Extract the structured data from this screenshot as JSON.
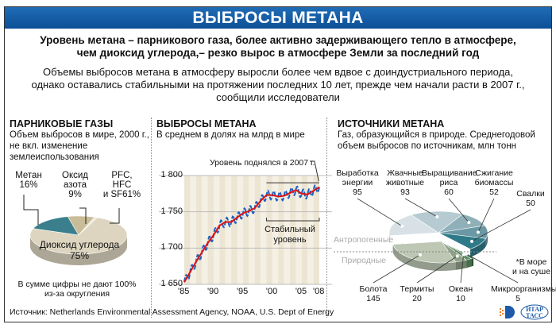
{
  "title": "ВЫБРОСЫ МЕТАНА",
  "lead_line1": "Уровень метана – парникового газа, более активно задерживающего тепло в атмосфере,",
  "lead_line2": "чем диоксид углерода,– резко вырос в атмосфере Земли за последний год",
  "intro_line1": "Объемы выбросов метана в атмосферу выросли более чем вдвое с доиндустриального периода,",
  "intro_line2": "однако оставались стабильными на протяжении последних 10 лет, прежде чем начали расти в 2007 г.,",
  "intro_line3": "сообщили исследователи",
  "source": "Источник: Netherlands Environmental Assessment Agency, NOAA, U.S. Dept of Energy",
  "logo_text": "ИТАР ТАСС",
  "chart_data": [
    {
      "type": "pie",
      "title": "ПАРНИКОВЫЕ ГАЗЫ",
      "subtitle_line1": "Объем выбросов в мире, 2000 г.,",
      "subtitle_line2": "не вкл. изменение",
      "subtitle_line3": "землеиспользования",
      "slices": [
        {
          "name": "Метан",
          "label_value": "16%",
          "value": 16,
          "color": "#3b7f8c"
        },
        {
          "name": "Оксид азота",
          "name2": "азота",
          "name1": "Оксид",
          "label_value": "9%",
          "value": 9,
          "color": "#c9bc98"
        },
        {
          "name": "PFC, HFC и SF6",
          "name1": "PFC,",
          "name2": "HFC",
          "label_value": "и SF61%",
          "value": 1,
          "color": "#ece6d6"
        },
        {
          "name": "Диоксид углерода",
          "label_value": "75%",
          "value": 75,
          "color": "#ddd5c0"
        }
      ],
      "note_line1": "В сумме цифры не дают 100%",
      "note_line2": "из-за округления"
    },
    {
      "type": "line",
      "title": "ВЫБРОСЫ МЕТАНА",
      "subtitle": "В среднем в долях на млрд в мире",
      "ylim": [
        1650,
        1800
      ],
      "yticks": [
        "1 650",
        "1 700",
        "1 750",
        "1 800"
      ],
      "ytick_values": [
        1650,
        1700,
        1750,
        1800
      ],
      "xlim": [
        1985,
        2008
      ],
      "xticks": [
        "'85",
        "'90",
        "'95",
        "'00",
        "'05",
        "'08"
      ],
      "xtick_values": [
        1985,
        1990,
        1995,
        2000,
        2005,
        2008
      ],
      "x": [
        1985,
        1986,
        1987,
        1988,
        1989,
        1990,
        1991,
        1992,
        1993,
        1994,
        1995,
        1996,
        1997,
        1998,
        1999,
        2000,
        2001,
        2002,
        2003,
        2004,
        2005,
        2006,
        2007,
        2008
      ],
      "trend": [
        1653,
        1667,
        1681,
        1694,
        1707,
        1718,
        1731,
        1736,
        1736,
        1742,
        1748,
        1751,
        1755,
        1765,
        1773,
        1773,
        1771,
        1772,
        1776,
        1780,
        1775,
        1774,
        1779,
        1784
      ],
      "seasonal_amplitude": 6,
      "annotation_rise": "Уровень поднялся в 2007 г.",
      "annotation_stable_line1": "Стабильный",
      "annotation_stable_line2": "уровень"
    },
    {
      "type": "pie",
      "title": "ИСТОЧНИКИ МЕТАНА",
      "subtitle_line1": "Газ, образующийся в природе. Среднегодовой",
      "subtitle_line2": "объем выбросов по источникам, млн тонн",
      "group_anthropogenic": "Антропогенные",
      "group_natural": "Природные",
      "slices": [
        {
          "name1": "Выработка",
          "name2": "энергии",
          "value": 95,
          "group": "a",
          "color": "#d8e2e6"
        },
        {
          "name1": "Жвачные",
          "name2": "животные",
          "value": 93,
          "group": "a",
          "color": "#b6cad1"
        },
        {
          "name1": "Выращивание",
          "name2": "риса",
          "value": 60,
          "group": "a",
          "color": "#8fb0b9"
        },
        {
          "name1": "Сжигание",
          "name2": "биомассы",
          "value": 52,
          "group": "a",
          "color": "#6a98a4"
        },
        {
          "name1": "Свалки",
          "name2": "",
          "value": 50,
          "group": "a",
          "color": "#2f7a89"
        },
        {
          "name1": "Микроорганизмы*",
          "name2": "",
          "value": 5,
          "group": "n",
          "color": "#2f6b3b"
        },
        {
          "name1": "Океан",
          "name2": "",
          "value": 10,
          "group": "n",
          "color": "#5e8a63"
        },
        {
          "name1": "Термиты",
          "name2": "",
          "value": 20,
          "group": "n",
          "color": "#8fa187"
        },
        {
          "name1": "Болота",
          "name2": "",
          "value": 145,
          "group": "n",
          "color": "#bdc7b3"
        }
      ],
      "footnote_line1": "*В море",
      "footnote_line2": "и на суше"
    }
  ]
}
